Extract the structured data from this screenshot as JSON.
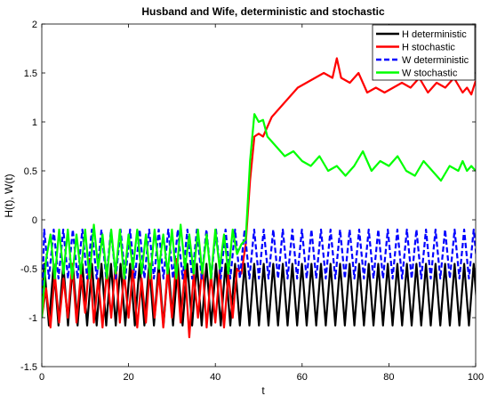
{
  "chart_data": {
    "type": "line",
    "title": "Husband and Wife, deterministic and stochastic",
    "xlabel": "t",
    "ylabel": "H(t), W(t)",
    "xlim": [
      0,
      100
    ],
    "ylim": [
      -1.5,
      2
    ],
    "xticks": [
      0,
      20,
      40,
      60,
      80,
      100
    ],
    "yticks": [
      -1.5,
      -1,
      -0.5,
      0,
      0.5,
      1,
      1.5,
      2
    ],
    "xtick_labels": [
      "0",
      "20",
      "40",
      "60",
      "80",
      "100"
    ],
    "ytick_labels": [
      "-1.5",
      "-1",
      "-0.5",
      "0",
      "0.5",
      "1",
      "1.5",
      "2"
    ],
    "grid": false,
    "legend_position": "top-right",
    "series": [
      {
        "name": "H deterministic",
        "color": "#000000",
        "style": "solid",
        "oscillation": {
          "t_start": 0,
          "period": 2.2,
          "min": -1.08,
          "max": -0.45,
          "start_value": -1.0
        }
      },
      {
        "name": "H stochastic",
        "color": "#ff0000",
        "style": "solid",
        "points": [
          [
            0,
            -1.0
          ],
          [
            1,
            -0.7
          ],
          [
            2,
            -1.1
          ],
          [
            3,
            -0.55
          ],
          [
            4,
            -1.05
          ],
          [
            5,
            -0.6
          ],
          [
            6,
            -1.0
          ],
          [
            7,
            -0.45
          ],
          [
            8,
            -1.05
          ],
          [
            9,
            -0.55
          ],
          [
            10,
            -0.95
          ],
          [
            11,
            -0.4
          ],
          [
            12,
            -1.05
          ],
          [
            13,
            -0.6
          ],
          [
            14,
            -1.1
          ],
          [
            15,
            -0.5
          ],
          [
            16,
            -1.0
          ],
          [
            17,
            -0.45
          ],
          [
            18,
            -1.05
          ],
          [
            19,
            -0.55
          ],
          [
            20,
            -1.0
          ],
          [
            21,
            -0.5
          ],
          [
            22,
            -1.1
          ],
          [
            23,
            -0.6
          ],
          [
            24,
            -1.05
          ],
          [
            25,
            -0.45
          ],
          [
            26,
            -1.0
          ],
          [
            27,
            -0.55
          ],
          [
            28,
            -1.1
          ],
          [
            29,
            -0.5
          ],
          [
            30,
            -1.0
          ],
          [
            31,
            -0.4
          ],
          [
            32,
            -1.05
          ],
          [
            33,
            -0.5
          ],
          [
            34,
            -1.2
          ],
          [
            35,
            -0.55
          ],
          [
            36,
            -1.0
          ],
          [
            37,
            -0.45
          ],
          [
            38,
            -1.1
          ],
          [
            39,
            -0.55
          ],
          [
            40,
            -1.05
          ],
          [
            41,
            -0.5
          ],
          [
            42,
            -1.1
          ],
          [
            43,
            -0.55
          ],
          [
            44,
            -1.0
          ],
          [
            45,
            -0.5
          ],
          [
            46,
            -0.55
          ],
          [
            47,
            -0.25
          ],
          [
            48,
            0.4
          ],
          [
            49,
            0.85
          ],
          [
            50,
            0.88
          ],
          [
            51,
            0.85
          ],
          [
            52,
            0.95
          ],
          [
            53,
            1.05
          ],
          [
            55,
            1.15
          ],
          [
            57,
            1.25
          ],
          [
            59,
            1.35
          ],
          [
            61,
            1.4
          ],
          [
            63,
            1.45
          ],
          [
            65,
            1.5
          ],
          [
            67,
            1.45
          ],
          [
            68,
            1.65
          ],
          [
            69,
            1.45
          ],
          [
            71,
            1.4
          ],
          [
            73,
            1.5
          ],
          [
            75,
            1.3
          ],
          [
            77,
            1.35
          ],
          [
            79,
            1.3
          ],
          [
            81,
            1.35
          ],
          [
            83,
            1.4
          ],
          [
            85,
            1.35
          ],
          [
            87,
            1.45
          ],
          [
            89,
            1.3
          ],
          [
            91,
            1.4
          ],
          [
            93,
            1.35
          ],
          [
            95,
            1.45
          ],
          [
            97,
            1.3
          ],
          [
            98,
            1.35
          ],
          [
            99,
            1.28
          ],
          [
            100,
            1.42
          ]
        ]
      },
      {
        "name": "W deterministic",
        "color": "#0000ff",
        "style": "dashed",
        "oscillation": {
          "t_start": 0,
          "period": 2.2,
          "min": -0.6,
          "max": -0.1,
          "start_value": -1.0
        }
      },
      {
        "name": "W stochastic",
        "color": "#00ff00",
        "style": "solid",
        "points": [
          [
            0,
            -1.0
          ],
          [
            1,
            -0.4
          ],
          [
            2,
            -0.15
          ],
          [
            3,
            -0.6
          ],
          [
            4,
            -0.1
          ],
          [
            5,
            -0.55
          ],
          [
            6,
            -0.1
          ],
          [
            7,
            -0.6
          ],
          [
            8,
            -0.15
          ],
          [
            9,
            -0.55
          ],
          [
            10,
            -0.1
          ],
          [
            11,
            -0.6
          ],
          [
            12,
            -0.05
          ],
          [
            13,
            -0.5
          ],
          [
            14,
            -0.15
          ],
          [
            15,
            -0.6
          ],
          [
            16,
            -0.1
          ],
          [
            17,
            -0.55
          ],
          [
            18,
            -0.1
          ],
          [
            19,
            -0.6
          ],
          [
            20,
            -0.15
          ],
          [
            21,
            -0.5
          ],
          [
            22,
            -0.1
          ],
          [
            23,
            -0.55
          ],
          [
            24,
            -0.15
          ],
          [
            25,
            -0.6
          ],
          [
            26,
            -0.1
          ],
          [
            27,
            -0.5
          ],
          [
            28,
            -0.15
          ],
          [
            29,
            -0.55
          ],
          [
            30,
            -0.1
          ],
          [
            31,
            -0.6
          ],
          [
            32,
            -0.05
          ],
          [
            33,
            -0.5
          ],
          [
            34,
            -0.15
          ],
          [
            35,
            -0.55
          ],
          [
            36,
            -0.1
          ],
          [
            37,
            -0.55
          ],
          [
            38,
            -0.15
          ],
          [
            39,
            -0.6
          ],
          [
            40,
            -0.1
          ],
          [
            41,
            -0.5
          ],
          [
            42,
            -0.15
          ],
          [
            43,
            -0.55
          ],
          [
            44,
            -0.1
          ],
          [
            45,
            -0.35
          ],
          [
            46,
            -0.25
          ],
          [
            47,
            -0.2
          ],
          [
            48,
            0.6
          ],
          [
            49,
            1.08
          ],
          [
            50,
            1.0
          ],
          [
            51,
            1.02
          ],
          [
            52,
            0.85
          ],
          [
            54,
            0.75
          ],
          [
            56,
            0.65
          ],
          [
            58,
            0.7
          ],
          [
            60,
            0.6
          ],
          [
            62,
            0.55
          ],
          [
            64,
            0.65
          ],
          [
            66,
            0.5
          ],
          [
            68,
            0.55
          ],
          [
            70,
            0.45
          ],
          [
            72,
            0.55
          ],
          [
            74,
            0.7
          ],
          [
            76,
            0.5
          ],
          [
            78,
            0.6
          ],
          [
            80,
            0.55
          ],
          [
            82,
            0.65
          ],
          [
            84,
            0.5
          ],
          [
            86,
            0.45
          ],
          [
            88,
            0.6
          ],
          [
            90,
            0.5
          ],
          [
            92,
            0.4
          ],
          [
            94,
            0.55
          ],
          [
            96,
            0.5
          ],
          [
            97,
            0.6
          ],
          [
            98,
            0.5
          ],
          [
            99,
            0.55
          ],
          [
            100,
            0.5
          ]
        ]
      }
    ]
  }
}
